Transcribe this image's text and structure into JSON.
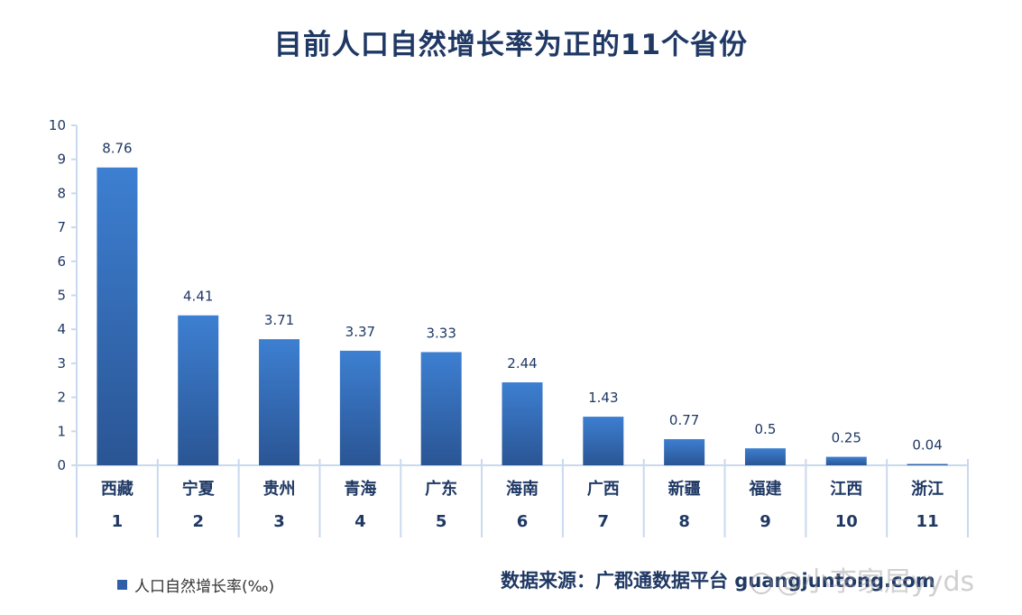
{
  "title": "目前人口自然增长率为正的11个省份",
  "legend": {
    "label": "人口自然增长率(‰)"
  },
  "source": "数据来源：广郡通数据平台 guangjuntong.com",
  "watermark": "@小李家居yyds",
  "colors": {
    "bar_top": "#3d7fd1",
    "bar_bottom": "#2a5594",
    "text_dark": "#1f3864",
    "axis": "#c9d9ee"
  },
  "chart_data": {
    "type": "bar",
    "title": "目前人口自然增长率为正的11个省份",
    "categories": [
      "西藏",
      "宁夏",
      "贵州",
      "青海",
      "广东",
      "海南",
      "广西",
      "新疆",
      "福建",
      "江西",
      "浙江"
    ],
    "ranks": [
      "1",
      "2",
      "3",
      "4",
      "5",
      "6",
      "7",
      "8",
      "9",
      "10",
      "11"
    ],
    "series": [
      {
        "name": "人口自然增长率(‰)",
        "values": [
          8.76,
          4.41,
          3.71,
          3.37,
          3.33,
          2.44,
          1.43,
          0.77,
          0.5,
          0.25,
          0.04
        ]
      }
    ],
    "value_labels": [
      "8.76",
      "4.41",
      "3.71",
      "3.37",
      "3.33",
      "2.44",
      "1.43",
      "0.77",
      "0.5",
      "0.25",
      "0.04"
    ],
    "ylim": [
      0,
      10
    ],
    "yticks": [
      0,
      1,
      2,
      3,
      4,
      5,
      6,
      7,
      8,
      9,
      10
    ],
    "xlabel": "",
    "ylabel": "",
    "grid": false,
    "legend_position": "bottom-left"
  }
}
